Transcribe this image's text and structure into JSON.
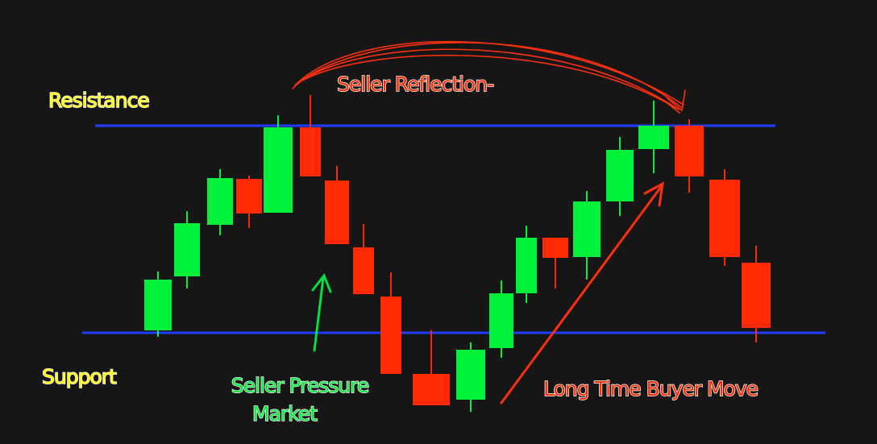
{
  "chart_data": {
    "type": "candlestick",
    "ylim": [
      0,
      551
    ],
    "up_color": "#00f03c",
    "down_color": "#ff2a00",
    "series": {
      "open": [
        141,
        208,
        272,
        329,
        287,
        393,
        327,
        244,
        183,
        87,
        55,
        119,
        187,
        256,
        232,
        301,
        366,
        395,
        328,
        225
      ],
      "high": [
        214,
        289,
        341,
        333,
        408,
        433,
        345,
        273,
        213,
        141,
        126,
        203,
        271,
        256,
        314,
        381,
        426,
        403,
        341,
        246
      ],
      "low": [
        133,
        193,
        259,
        268,
        287,
        332,
        248,
        186,
        87,
        48,
        40,
        107,
        175,
        193,
        204,
        283,
        336,
        312,
        221,
        126
      ],
      "close": [
        204,
        274,
        330,
        286,
        393,
        332,
        248,
        186,
        87,
        48,
        117,
        187,
        256,
        231,
        301,
        365,
        395,
        332,
        232,
        144
      ]
    },
    "levels": [
      {
        "label": "Resistance",
        "value": 395,
        "color": "#1f3cff"
      },
      {
        "label": "Support",
        "value": 138,
        "color": "#1f3cff"
      }
    ],
    "annotations": {
      "seller_reflection": "Seller Reflection-",
      "seller_pressure": [
        "Seller Pressure",
        "Market"
      ],
      "buyer_move": "Long Time Buyer Move"
    }
  }
}
